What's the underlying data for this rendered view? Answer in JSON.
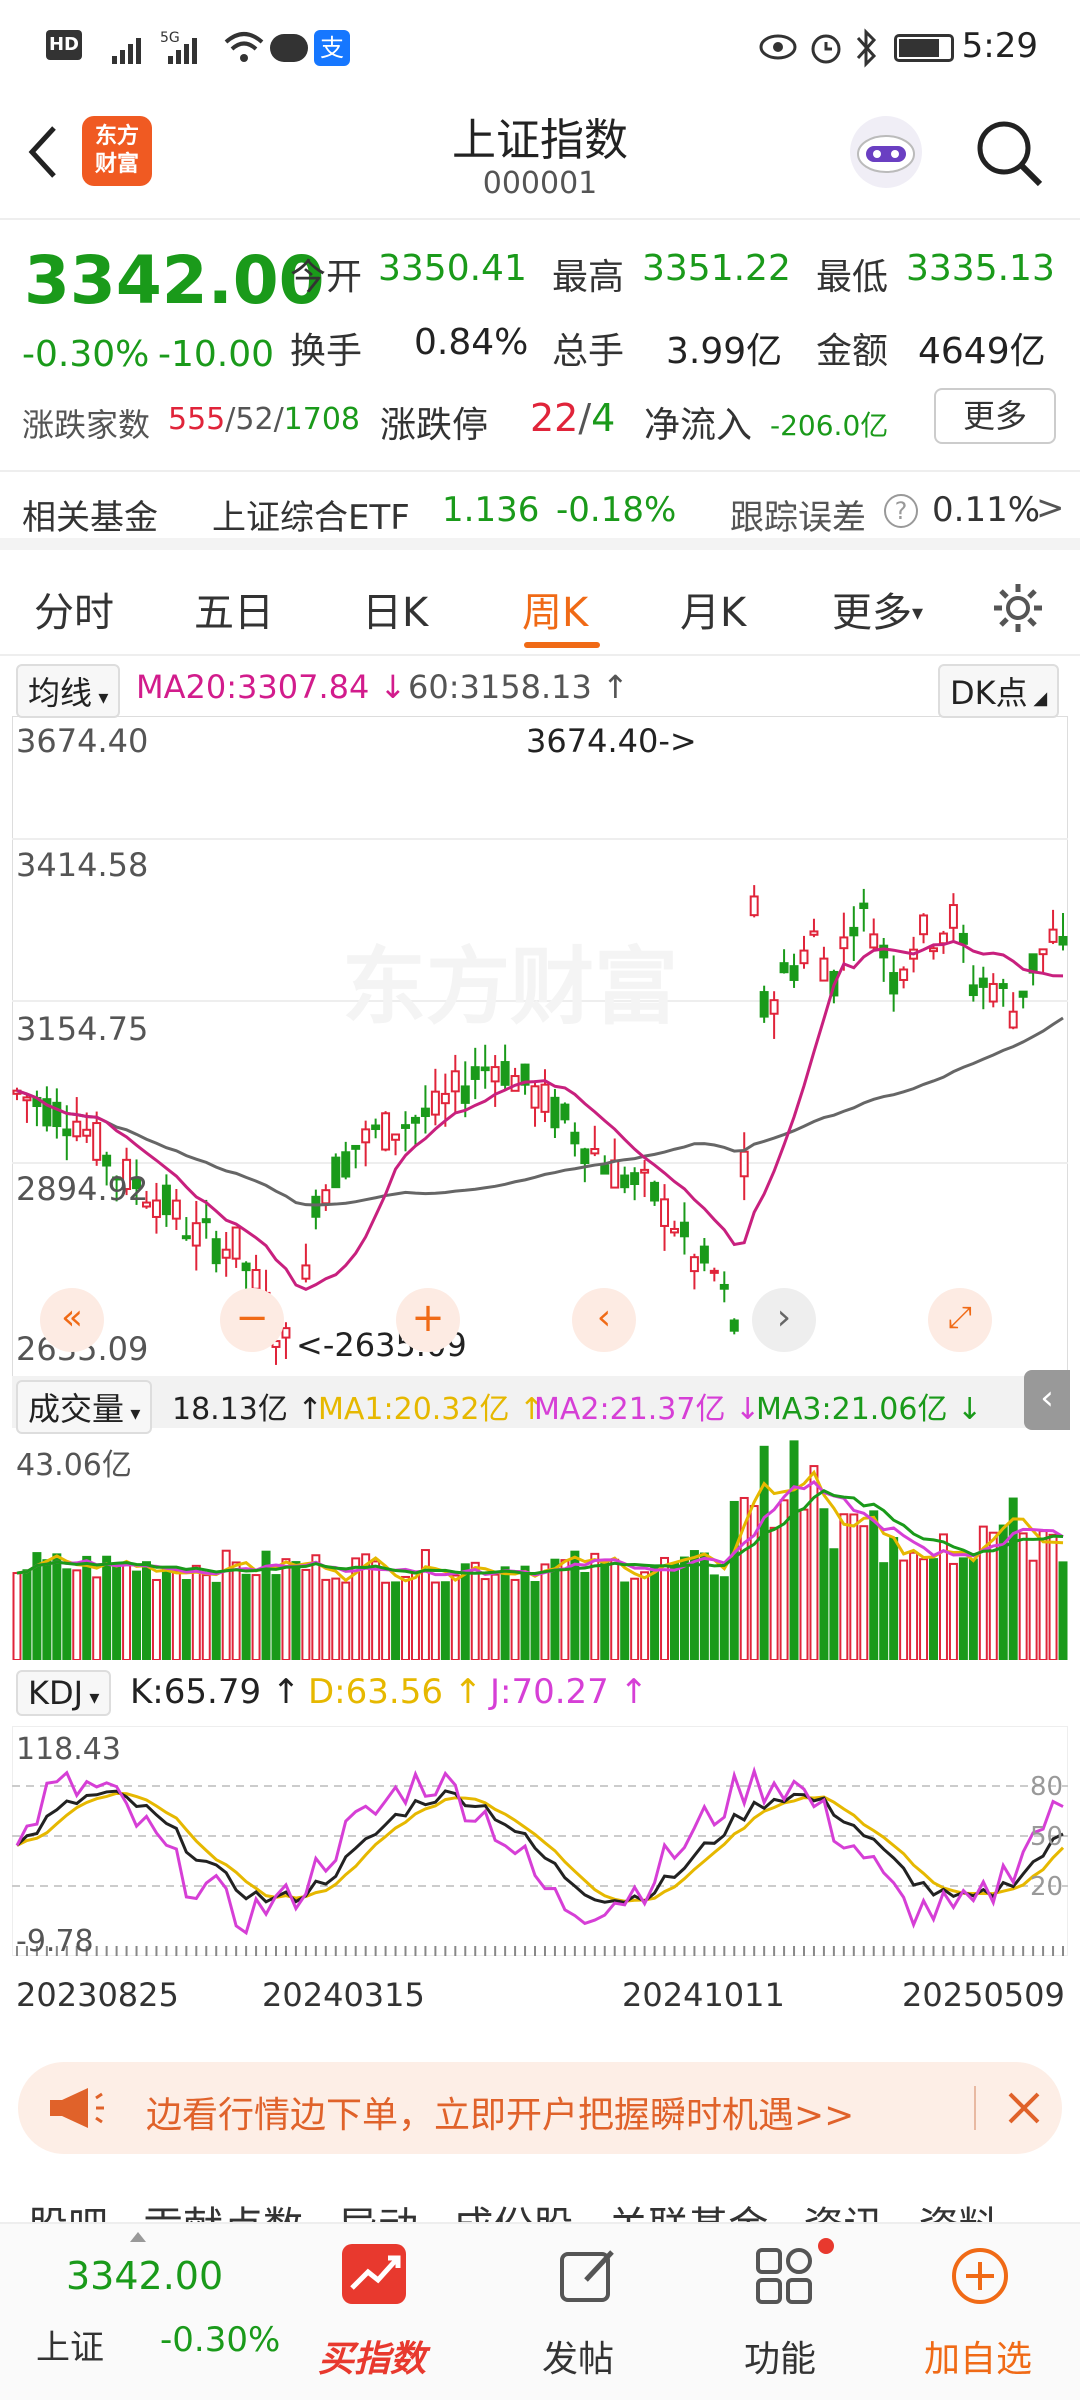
{
  "status_bar": {
    "time": "5:29",
    "hd": "HD",
    "net": "5G"
  },
  "header": {
    "back_icon": "back-arrow-icon",
    "badge_line1": "东方",
    "badge_line2": "财富",
    "title": "上证指数",
    "code": "000001"
  },
  "quote": {
    "price": "3342.00",
    "change_pct": "-0.30%",
    "change": "-10.00",
    "open_label": "今开",
    "open": "3350.41",
    "high_label": "最高",
    "high": "3351.22",
    "low_label": "最低",
    "low": "3335.13",
    "turnover_label": "换手",
    "turnover": "0.84%",
    "volume_label": "总手",
    "volume": "3.99亿",
    "amount_label": "金额",
    "amount": "4649亿",
    "breadth_label": "涨跌家数",
    "breadth_up": "555",
    "breadth_flat": "52",
    "breadth_down": "1708",
    "limit_label": "涨跌停",
    "limit_up": "22",
    "limit_down": "4",
    "netflow_label": "净流入",
    "netflow": "-206.0亿",
    "more_button": "更多"
  },
  "fund": {
    "label": "相关基金",
    "name": "上证综合ETF",
    "price": "1.136",
    "pct": "-0.18%",
    "tracking_label": "跟踪误差",
    "tracking": "0.11%",
    "arrow": ">"
  },
  "tabs": [
    {
      "label": "分时"
    },
    {
      "label": "五日"
    },
    {
      "label": "日K"
    },
    {
      "label": "周K"
    },
    {
      "label": "月K"
    },
    {
      "label": "更多"
    }
  ],
  "chart": {
    "ma_selector": "均线",
    "ma20": "MA20:3307.84",
    "ma60": "60:3158.13",
    "dk_button": "DK点",
    "y_ticks": [
      "3674.40",
      "3414.58",
      "3154.75",
      "2894.92",
      "2635.09"
    ],
    "max_annotation": "3674.40->",
    "min_annotation": "<-2635.09",
    "watermark": "东方财富",
    "vol_selector": "成交量",
    "vol_value": "18.13亿",
    "vol_ma1": "MA1:20.32亿",
    "vol_ma2": "MA2:21.37亿",
    "vol_ma3": "MA3:21.06亿",
    "vol_max": "43.06亿",
    "kdj_selector": "KDJ",
    "k": "K:65.79",
    "d": "D:63.56",
    "j": "J:70.27",
    "kdj_top": "118.43",
    "kdj_bottom": "-9.78",
    "kdj_levels": [
      "80",
      "50",
      "20"
    ],
    "dates": [
      "20230825",
      "20240315",
      "20241011",
      "20250509"
    ],
    "colors": {
      "up": "#e0243a",
      "down": "#1a9a1a",
      "ma20": "#c8207e",
      "ma60": "#666666",
      "ma1": "#e6b800",
      "ma2": "#d63fd6",
      "ma3": "#1a9a1a"
    }
  },
  "banner": {
    "text": "边看行情边下单，立即开户把握瞬时机遇>>"
  },
  "subtabs": [
    "股吧",
    "贡献点数",
    "异动",
    "成份股",
    "关联基金",
    "资讯",
    "资料"
  ],
  "bottom_nav": {
    "price": "3342.00",
    "name": "上证",
    "pct": "-0.30%",
    "buy": "买指数",
    "post": "发帖",
    "func": "功能",
    "add": "加自选"
  }
}
